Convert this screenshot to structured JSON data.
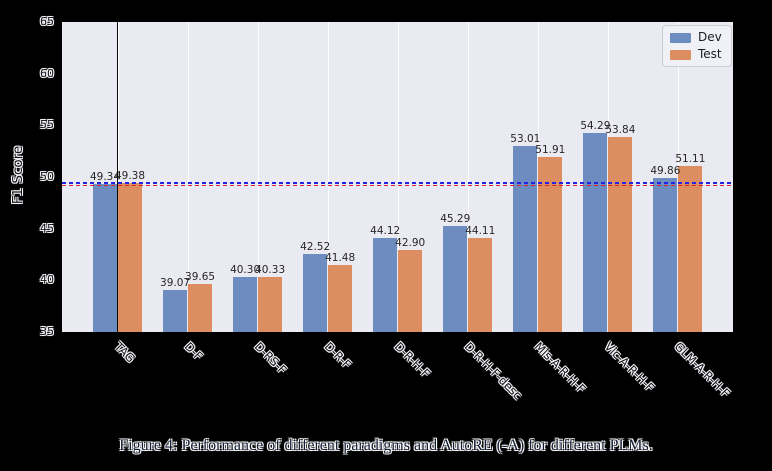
{
  "figure": {
    "caption": "Figure 4: Performance of different paradigms and AutoRE (-A) for different PLMs."
  },
  "chart_data": {
    "type": "bar",
    "title": "",
    "xlabel": "",
    "ylabel": "F1 Score",
    "ylim": [
      35,
      65
    ],
    "yticks": [
      35,
      40,
      45,
      50,
      55,
      60,
      65
    ],
    "grid": "vertical-white-gridlines-at-category-centers",
    "plot_background": "#eaeaf2",
    "categories": [
      "TAG",
      "D-F",
      "D-RS-F",
      "D-R-F",
      "D-R-H-F",
      "D-R-H-F-desc",
      "Mis-A-R-H-F",
      "Vic-A-R-H-F",
      "GLM-A-R-H-F"
    ],
    "series": [
      {
        "name": "Dev",
        "color": "#6d8cc0",
        "values": [
          49.34,
          39.07,
          40.3,
          42.52,
          44.12,
          45.29,
          53.01,
          54.29,
          49.86
        ]
      },
      {
        "name": "Test",
        "color": "#dd8e61",
        "values": [
          49.38,
          39.65,
          40.33,
          41.48,
          42.9,
          44.11,
          51.91,
          53.84,
          51.11
        ]
      }
    ],
    "bar_value_labels": true,
    "legend_position": "upper-right",
    "reference_lines": [
      {
        "type": "horizontal",
        "value": 49.38,
        "style": "dashed",
        "color": "#2323e8"
      },
      {
        "type": "horizontal",
        "value": 49.34,
        "style": "dashed",
        "color": "#e32222"
      },
      {
        "type": "vertical",
        "category": "TAG",
        "style": "solid",
        "color": "#0a0a0a"
      }
    ]
  },
  "legend": {
    "items": [
      {
        "label": "Dev",
        "color": "#6d8cc0"
      },
      {
        "label": "Test",
        "color": "#dd8e61"
      }
    ]
  }
}
